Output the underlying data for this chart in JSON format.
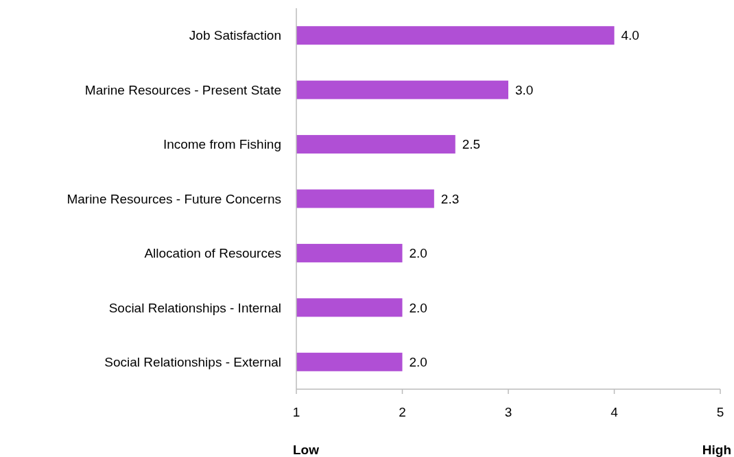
{
  "chart_data": {
    "type": "bar",
    "orientation": "horizontal",
    "categories": [
      "Job Satisfaction",
      "Marine Resources - Present State",
      "Income from Fishing",
      "Marine Resources - Future Concerns",
      "Allocation of Resources",
      "Social Relationships - Internal",
      "Social Relationships - External"
    ],
    "values": [
      4.0,
      3.0,
      2.5,
      2.3,
      2.0,
      2.0,
      2.0
    ],
    "value_labels": [
      "4.0",
      "3.0",
      "2.5",
      "2.3",
      "2.0",
      "2.0",
      "2.0"
    ],
    "color": "#b04fd5",
    "xlim": [
      1,
      5
    ],
    "xticks": [
      1,
      2,
      3,
      4,
      5
    ],
    "annotations": [
      "Low",
      "High"
    ],
    "grid": false
  }
}
